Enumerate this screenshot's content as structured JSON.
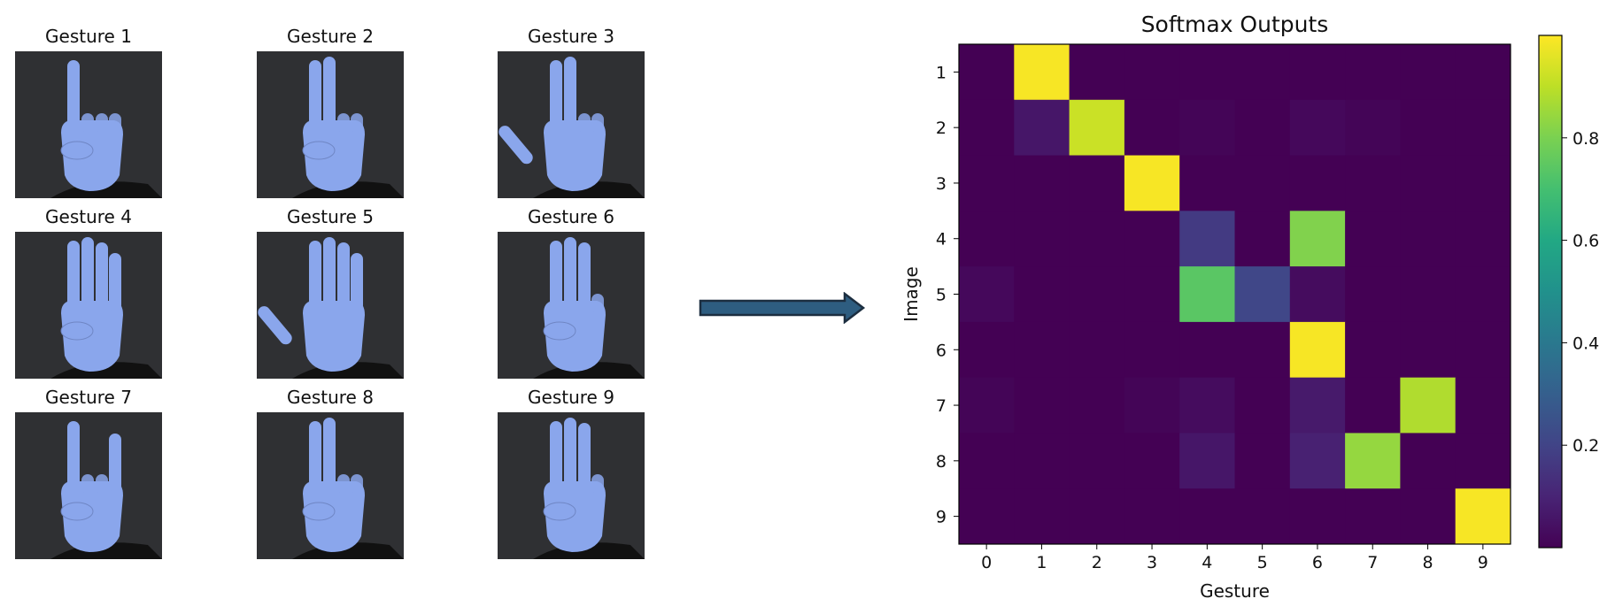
{
  "gestures": [
    {
      "title": "Gesture 1",
      "fingers": [
        0,
        1,
        0,
        0,
        0
      ],
      "thumb_up": false
    },
    {
      "title": "Gesture 2",
      "fingers": [
        0,
        1,
        1,
        0,
        0
      ],
      "thumb_up": false
    },
    {
      "title": "Gesture 3",
      "fingers": [
        0,
        1,
        1,
        0,
        0
      ],
      "thumb_up": true
    },
    {
      "title": "Gesture 4",
      "fingers": [
        0,
        1,
        1,
        1,
        1
      ],
      "thumb_up": false
    },
    {
      "title": "Gesture 5",
      "fingers": [
        0,
        1,
        1,
        1,
        1
      ],
      "thumb_up": true
    },
    {
      "title": "Gesture 6",
      "fingers": [
        0,
        1,
        1,
        1,
        0
      ],
      "thumb_up": false
    },
    {
      "title": "Gesture 7",
      "fingers": [
        0,
        1,
        0,
        0,
        1
      ],
      "thumb_up": false
    },
    {
      "title": "Gesture 8",
      "fingers": [
        0,
        1,
        1,
        0,
        0
      ],
      "thumb_up": false
    },
    {
      "title": "Gesture 9",
      "fingers": [
        0,
        1,
        1,
        1,
        0
      ],
      "thumb_up": false
    }
  ],
  "colors": {
    "hand": "#8aa6ec",
    "background": "#2f3033",
    "arrow_fill": "#2e5d80",
    "arrow_stroke": "#1c2e40"
  },
  "chart_data": {
    "type": "heatmap",
    "title": "Softmax Outputs",
    "xlabel": "Gesture",
    "ylabel": "Image",
    "x": [
      0,
      1,
      2,
      3,
      4,
      5,
      6,
      7,
      8,
      9
    ],
    "y": [
      1,
      2,
      3,
      4,
      5,
      6,
      7,
      8,
      9
    ],
    "values": [
      [
        0.0,
        0.99,
        0.0,
        0.0,
        0.0,
        0.0,
        0.0,
        0.0,
        0.0,
        0.0
      ],
      [
        0.0,
        0.06,
        0.92,
        0.0,
        0.01,
        0.0,
        0.02,
        0.01,
        0.0,
        0.0
      ],
      [
        0.0,
        0.0,
        0.0,
        0.99,
        0.0,
        0.0,
        0.0,
        0.0,
        0.0,
        0.0
      ],
      [
        0.0,
        0.0,
        0.0,
        0.0,
        0.17,
        0.0,
        0.81,
        0.0,
        0.0,
        0.0
      ],
      [
        0.02,
        0.0,
        0.0,
        0.0,
        0.74,
        0.21,
        0.03,
        0.0,
        0.0,
        0.0
      ],
      [
        0.0,
        0.0,
        0.0,
        0.0,
        0.0,
        0.0,
        0.99,
        0.0,
        0.0,
        0.0
      ],
      [
        0.01,
        0.0,
        0.0,
        0.01,
        0.03,
        0.0,
        0.07,
        0.0,
        0.88,
        0.0
      ],
      [
        0.0,
        0.0,
        0.0,
        0.0,
        0.06,
        0.0,
        0.09,
        0.84,
        0.0,
        0.0
      ],
      [
        0.0,
        0.0,
        0.0,
        0.0,
        0.0,
        0.0,
        0.0,
        0.0,
        0.0,
        0.99
      ]
    ],
    "colorbar": {
      "ticks": [
        0.2,
        0.4,
        0.6,
        0.8
      ],
      "range": [
        0.0,
        1.0
      ],
      "colormap": "viridis"
    },
    "grid": false
  }
}
